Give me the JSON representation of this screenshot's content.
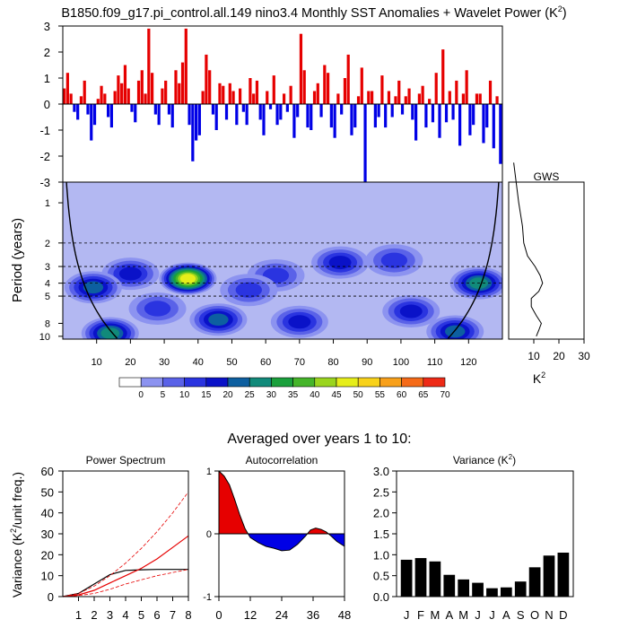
{
  "title": {
    "main": "B1850.f09_g17.pi_control.all.149 nino3.4 Monthly SST Anomalies + Wavelet Power (K",
    "sup": "2",
    "close": ")"
  },
  "colors": {
    "positive": "#e60000",
    "negative": "#0000e6",
    "black": "#000000",
    "wavelet_levels": [
      "#ffffff",
      "#b3b8f2",
      "#8c93f0",
      "#5a62e8",
      "#2a34e0",
      "#0a12c8",
      "#0d5fa0",
      "#118a7a",
      "#1aa03c",
      "#45b52a",
      "#9ad51e",
      "#e6ee1a",
      "#f8d21a",
      "#f8a01a",
      "#f56a18",
      "#ee2a16"
    ]
  },
  "chart_data": [
    {
      "id": "sst-anomaly",
      "type": "bar",
      "title": "nino3.4 Monthly SST Anomalies",
      "xlim": [
        0,
        130
      ],
      "ylim": [
        -3,
        3
      ],
      "y_ticks": [
        "3",
        "2",
        "1",
        "0",
        "-1",
        "-2",
        "-3"
      ],
      "x": "monthly, years 0-130",
      "values": [
        0.6,
        1.2,
        0.4,
        -0.3,
        -0.6,
        0.3,
        0.9,
        -0.4,
        -1.4,
        -0.8,
        0.2,
        0.7,
        0.4,
        -0.5,
        -0.9,
        0.5,
        1.1,
        0.8,
        1.5,
        0.6,
        -0.3,
        -0.7,
        0.9,
        1.3,
        0.4,
        2.9,
        1.2,
        -0.4,
        -0.8,
        0.6,
        0.9,
        -0.4,
        -0.9,
        1.3,
        0.8,
        1.6,
        2.9,
        -0.8,
        -2.2,
        -1.4,
        -1.2,
        0.5,
        1.9,
        1.3,
        -0.4,
        -1.0,
        0.8,
        0.7,
        -0.6,
        0.8,
        0.5,
        -0.8,
        0.6,
        -0.3,
        -0.8,
        1.0,
        0.4,
        0.9,
        -0.6,
        -1.2,
        0.5,
        -0.2,
        1.1,
        -0.8,
        -0.6,
        0.4,
        -0.3,
        0.7,
        -1.3,
        -0.5,
        2.7,
        1.3,
        -0.9,
        -1.0,
        0.5,
        0.8,
        -0.5,
        1.5,
        1.2,
        -0.9,
        -1.3,
        0.4,
        -0.4,
        1.0,
        1.9,
        -1.2,
        -0.9,
        0.3,
        1.4,
        -3.0,
        0.5,
        0.5,
        -0.9,
        -0.5,
        1.1,
        -0.9,
        0.5,
        -0.5,
        0.3,
        0.9,
        -0.4,
        0.3,
        0.6,
        -0.6,
        -1.4,
        0.4,
        0.7,
        -0.9,
        0.2,
        -0.7,
        1.2,
        -1.3,
        2.1,
        -0.7,
        0.5,
        -0.6,
        0.9,
        -1.6,
        0.4,
        1.3,
        -1.2,
        -0.8,
        0.4,
        0.4,
        -1.5,
        -0.9,
        0.9,
        -1.7,
        0.3,
        -2.3
      ]
    },
    {
      "id": "wavelet-power",
      "type": "heatmap",
      "title": "Wavelet Power (K^2)",
      "xlabel": "",
      "ylabel": "Period (years)",
      "xlim": [
        0,
        130
      ],
      "y_ticks": [
        "1",
        "2",
        "3",
        "4",
        "5",
        "8",
        "10"
      ],
      "y_tick_values": [
        1,
        2,
        3,
        4,
        5,
        8,
        10
      ],
      "x_ticks": [
        "10",
        "20",
        "30",
        "40",
        "50",
        "60",
        "70",
        "80",
        "90",
        "100",
        "110",
        "120"
      ],
      "x_tick_values": [
        10,
        20,
        30,
        40,
        50,
        60,
        70,
        80,
        90,
        100,
        110,
        120
      ],
      "dashed_periods": [
        2,
        3,
        4,
        5
      ],
      "blobs": [
        {
          "x": 37,
          "period": 3.7,
          "level": 11,
          "label": "peak"
        },
        {
          "x": 20,
          "period": 3.4,
          "level": 5
        },
        {
          "x": 9,
          "period": 4.3,
          "level": 6
        },
        {
          "x": 14,
          "period": 9.5,
          "level": 7
        },
        {
          "x": 46,
          "period": 7.5,
          "level": 6
        },
        {
          "x": 70,
          "period": 7.8,
          "level": 5
        },
        {
          "x": 82,
          "period": 2.8,
          "level": 5
        },
        {
          "x": 63,
          "period": 3.5,
          "level": 4
        },
        {
          "x": 55,
          "period": 4.5,
          "level": 4
        },
        {
          "x": 98,
          "period": 2.7,
          "level": 4
        },
        {
          "x": 103,
          "period": 6.5,
          "level": 5
        },
        {
          "x": 123,
          "period": 4.0,
          "level": 7
        },
        {
          "x": 116,
          "period": 9.2,
          "level": 6
        },
        {
          "x": 28,
          "period": 6.2,
          "level": 4
        }
      ]
    },
    {
      "id": "colorbar",
      "type": "colorbar",
      "tick_labels": [
        "0",
        "5",
        "10",
        "15",
        "20",
        "25",
        "30",
        "35",
        "40",
        "45",
        "50",
        "55",
        "60",
        "65",
        "70"
      ]
    },
    {
      "id": "gws",
      "type": "line",
      "title": "GWS",
      "xlabel": "K",
      "xlabel_sup": "2",
      "xlim": [
        0,
        30
      ],
      "x_ticks": [
        "10",
        "20",
        "30"
      ],
      "x_tick_values": [
        10,
        20,
        30
      ],
      "points": [
        [
          2,
          0.5
        ],
        [
          4,
          1.0
        ],
        [
          5.5,
          1.5
        ],
        [
          6,
          2.0
        ],
        [
          7.5,
          2.5
        ],
        [
          10.5,
          3.0
        ],
        [
          12.5,
          3.5
        ],
        [
          13.5,
          4.0
        ],
        [
          12,
          4.6
        ],
        [
          9,
          5.2
        ],
        [
          9,
          6.0
        ],
        [
          11,
          7.0
        ],
        [
          13,
          8.0
        ],
        [
          12,
          9.0
        ],
        [
          11,
          10.0
        ]
      ]
    },
    {
      "id": "power-spectrum",
      "type": "line",
      "title": "Power Spectrum",
      "ylabel": "Variance (K",
      "ylabel_sup": "2",
      "ylabel_end": "/unit freq.)",
      "xlim": [
        0,
        8
      ],
      "ylim": [
        0,
        60
      ],
      "x_ticks": [
        "1",
        "2",
        "3",
        "4",
        "5",
        "6",
        "7",
        "8"
      ],
      "y_ticks": [
        "0",
        "10",
        "20",
        "30",
        "40",
        "50",
        "60"
      ],
      "series": [
        {
          "name": "spectrum",
          "color": "#000000",
          "dash": false,
          "points": [
            [
              0,
              0
            ],
            [
              1,
              1.5
            ],
            [
              2,
              6
            ],
            [
              3,
              10.5
            ],
            [
              4,
              12.5
            ],
            [
              5,
              12.8
            ],
            [
              6,
              13
            ],
            [
              7,
              13
            ],
            [
              8,
              13
            ]
          ]
        },
        {
          "name": "red-noise",
          "color": "#e60000",
          "dash": false,
          "points": [
            [
              0,
              0
            ],
            [
              1,
              0.8
            ],
            [
              2,
              3
            ],
            [
              3,
              6.5
            ],
            [
              4,
              10
            ],
            [
              5,
              13.5
            ],
            [
              6,
              18
            ],
            [
              7,
              23.5
            ],
            [
              8,
              29
            ]
          ]
        },
        {
          "name": "upper-conf",
          "color": "#e60000",
          "dash": true,
          "points": [
            [
              0,
              0
            ],
            [
              1,
              1.5
            ],
            [
              2,
              5
            ],
            [
              3,
              10
            ],
            [
              4,
              16
            ],
            [
              5,
              23
            ],
            [
              6,
              31
            ],
            [
              7,
              40
            ],
            [
              8,
              50
            ]
          ]
        },
        {
          "name": "lower-conf",
          "color": "#e60000",
          "dash": true,
          "points": [
            [
              0,
              0
            ],
            [
              1,
              0.5
            ],
            [
              2,
              1.5
            ],
            [
              3,
              3.5
            ],
            [
              4,
              6
            ],
            [
              5,
              8
            ],
            [
              6,
              10
            ],
            [
              7,
              11.5
            ],
            [
              8,
              13
            ]
          ]
        }
      ]
    },
    {
      "id": "autocorrelation",
      "type": "area",
      "title": "Autocorrelation",
      "xlim": [
        0,
        48
      ],
      "ylim": [
        -1,
        1
      ],
      "x_ticks": [
        "0",
        "12",
        "24",
        "36",
        "48"
      ],
      "x_tick_values": [
        0,
        12,
        24,
        36,
        48
      ],
      "y_ticks": [
        "1",
        "0",
        "-1"
      ],
      "y_tick_values": [
        1,
        0,
        -1
      ],
      "points": [
        [
          0,
          1.0
        ],
        [
          2,
          0.92
        ],
        [
          4,
          0.78
        ],
        [
          6,
          0.55
        ],
        [
          8,
          0.3
        ],
        [
          10,
          0.08
        ],
        [
          12,
          -0.06
        ],
        [
          15,
          -0.14
        ],
        [
          18,
          -0.2
        ],
        [
          21,
          -0.23
        ],
        [
          24,
          -0.27
        ],
        [
          27,
          -0.26
        ],
        [
          30,
          -0.17
        ],
        [
          33,
          -0.04
        ],
        [
          35,
          0.06
        ],
        [
          37,
          0.09
        ],
        [
          39,
          0.07
        ],
        [
          41,
          0.03
        ],
        [
          43,
          -0.04
        ],
        [
          45,
          -0.12
        ],
        [
          48,
          -0.2
        ]
      ]
    },
    {
      "id": "variance",
      "type": "bar",
      "title": "Variance (K",
      "title_sup": "2",
      "title_end": ")",
      "categories": [
        "J",
        "F",
        "M",
        "A",
        "M",
        "J",
        "J",
        "A",
        "S",
        "O",
        "N",
        "D"
      ],
      "values": [
        0.88,
        0.92,
        0.84,
        0.52,
        0.41,
        0.33,
        0.2,
        0.22,
        0.36,
        0.7,
        0.98,
        1.05
      ],
      "ylim": [
        0,
        3
      ],
      "y_ticks": [
        "0.0",
        "0.5",
        "1.0",
        "1.5",
        "2.0",
        "2.5",
        "3.0"
      ],
      "y_tick_values": [
        0,
        0.5,
        1,
        1.5,
        2,
        2.5,
        3
      ]
    }
  ],
  "panels_header": "Averaged over years 1 to 10:"
}
